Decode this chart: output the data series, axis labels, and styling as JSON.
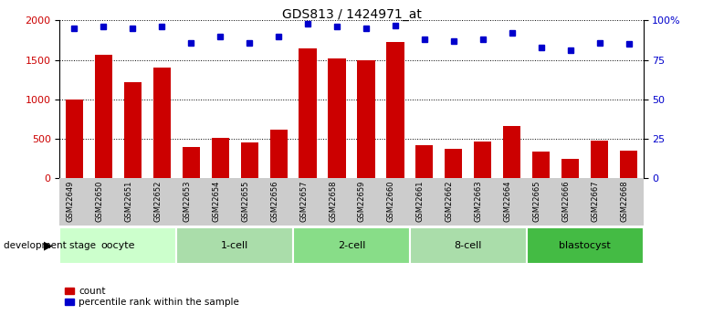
{
  "title": "GDS813 / 1424971_at",
  "samples": [
    "GSM22649",
    "GSM22650",
    "GSM22651",
    "GSM22652",
    "GSM22653",
    "GSM22654",
    "GSM22655",
    "GSM22656",
    "GSM22657",
    "GSM22658",
    "GSM22659",
    "GSM22660",
    "GSM22661",
    "GSM22662",
    "GSM22663",
    "GSM22664",
    "GSM22665",
    "GSM22666",
    "GSM22667",
    "GSM22668"
  ],
  "counts": [
    1000,
    1560,
    1220,
    1400,
    390,
    510,
    450,
    610,
    1640,
    1520,
    1490,
    1730,
    420,
    375,
    460,
    660,
    330,
    240,
    480,
    350
  ],
  "percentile_ranks": [
    95,
    96,
    95,
    96,
    86,
    90,
    86,
    90,
    98,
    96,
    95,
    97,
    88,
    87,
    88,
    92,
    83,
    81,
    86,
    85
  ],
  "groups": [
    {
      "name": "oocyte",
      "start": 0,
      "end": 3,
      "color": "#ccffcc"
    },
    {
      "name": "1-cell",
      "start": 4,
      "end": 7,
      "color": "#aaddaa"
    },
    {
      "name": "2-cell",
      "start": 8,
      "end": 11,
      "color": "#88dd88"
    },
    {
      "name": "8-cell",
      "start": 12,
      "end": 15,
      "color": "#aaddaa"
    },
    {
      "name": "blastocyst",
      "start": 16,
      "end": 19,
      "color": "#44bb44"
    }
  ],
  "bar_color": "#cc0000",
  "dot_color": "#0000cc",
  "ylim_left": [
    0,
    2000
  ],
  "ylim_right": [
    0,
    100
  ],
  "yticks_left": [
    0,
    500,
    1000,
    1500,
    2000
  ],
  "yticks_right": [
    0,
    25,
    50,
    75,
    100
  ],
  "ylabel_left_color": "#cc0000",
  "ylabel_right_color": "#0000cc",
  "xticklabel_bg": "#cccccc",
  "background_color": "#ffffff"
}
